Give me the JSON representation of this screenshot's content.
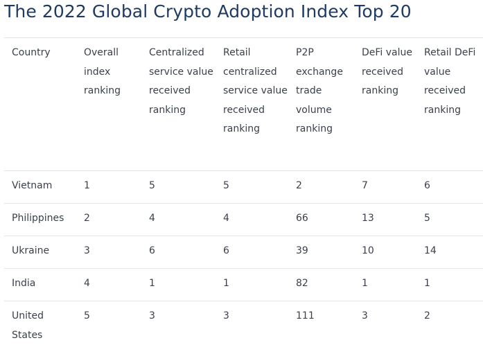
{
  "title": "The 2022 Global Crypto Adoption Index Top 20",
  "table": {
    "headers": [
      "Country",
      "Overall index ranking",
      "Centralized service value received ranking",
      "Retail centralized service value received ranking",
      "P2P exchange trade volume ranking",
      "DeFi value received ranking",
      "Retail DeFi value received ranking"
    ],
    "rows": [
      [
        "Vietnam",
        "1",
        "5",
        "5",
        "2",
        "7",
        "6"
      ],
      [
        "Philippines",
        "2",
        "4",
        "4",
        "66",
        "13",
        "5"
      ],
      [
        "Ukraine",
        "3",
        "6",
        "6",
        "39",
        "10",
        "14"
      ],
      [
        "India",
        "4",
        "1",
        "1",
        "82",
        "1",
        "1"
      ],
      [
        "United States",
        "5",
        "3",
        "3",
        "111",
        "3",
        "2"
      ]
    ]
  },
  "colors": {
    "title": "#1f3b63",
    "text": "#3a3f4a",
    "border": "#e3e5e8"
  }
}
